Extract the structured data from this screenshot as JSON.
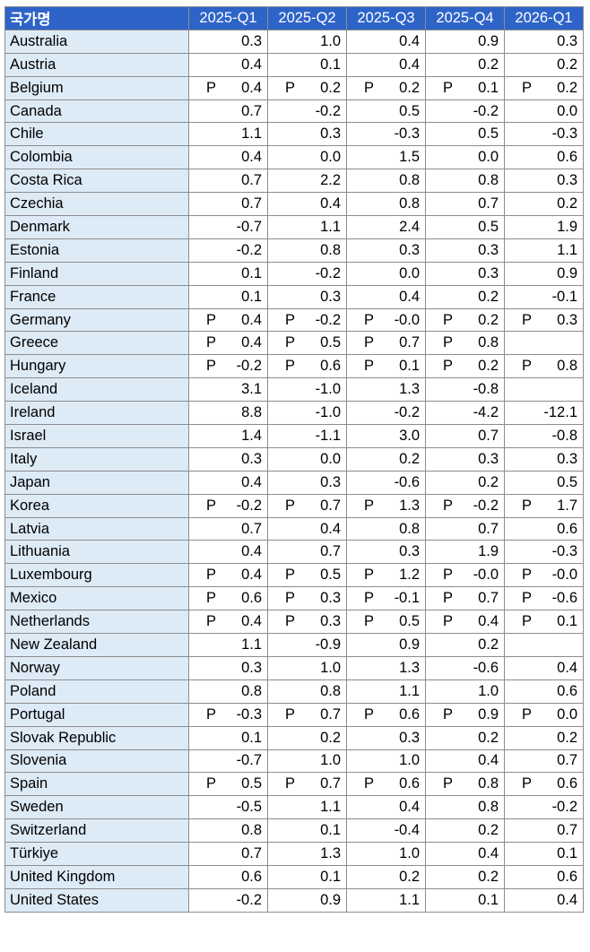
{
  "header": {
    "name_col": "국가명",
    "quarters": [
      "2025-Q1",
      "2025-Q2",
      "2025-Q3",
      "2025-Q4",
      "2026-Q1"
    ]
  },
  "rows": [
    {
      "country": "Australia",
      "cells": [
        {
          "f": "",
          "v": "0.3"
        },
        {
          "f": "",
          "v": "1.0"
        },
        {
          "f": "",
          "v": "0.4"
        },
        {
          "f": "",
          "v": "0.9"
        },
        {
          "f": "",
          "v": "0.3"
        }
      ]
    },
    {
      "country": "Austria",
      "cells": [
        {
          "f": "",
          "v": "0.4"
        },
        {
          "f": "",
          "v": "0.1"
        },
        {
          "f": "",
          "v": "0.4"
        },
        {
          "f": "",
          "v": "0.2"
        },
        {
          "f": "",
          "v": "0.2"
        }
      ]
    },
    {
      "country": "Belgium",
      "cells": [
        {
          "f": "P",
          "v": "0.4"
        },
        {
          "f": "P",
          "v": "0.2"
        },
        {
          "f": "P",
          "v": "0.2"
        },
        {
          "f": "P",
          "v": "0.1"
        },
        {
          "f": "P",
          "v": "0.2"
        }
      ]
    },
    {
      "country": "Canada",
      "cells": [
        {
          "f": "",
          "v": "0.7"
        },
        {
          "f": "",
          "v": "-0.2"
        },
        {
          "f": "",
          "v": "0.5"
        },
        {
          "f": "",
          "v": "-0.2"
        },
        {
          "f": "",
          "v": "0.0"
        }
      ]
    },
    {
      "country": "Chile",
      "cells": [
        {
          "f": "",
          "v": "1.1"
        },
        {
          "f": "",
          "v": "0.3"
        },
        {
          "f": "",
          "v": "-0.3"
        },
        {
          "f": "",
          "v": "0.5"
        },
        {
          "f": "",
          "v": "-0.3"
        }
      ]
    },
    {
      "country": "Colombia",
      "cells": [
        {
          "f": "",
          "v": "0.4"
        },
        {
          "f": "",
          "v": "0.0"
        },
        {
          "f": "",
          "v": "1.5"
        },
        {
          "f": "",
          "v": "0.0"
        },
        {
          "f": "",
          "v": "0.6"
        }
      ]
    },
    {
      "country": "Costa Rica",
      "cells": [
        {
          "f": "",
          "v": "0.7"
        },
        {
          "f": "",
          "v": "2.2"
        },
        {
          "f": "",
          "v": "0.8"
        },
        {
          "f": "",
          "v": "0.8"
        },
        {
          "f": "",
          "v": "0.3"
        }
      ]
    },
    {
      "country": "Czechia",
      "cells": [
        {
          "f": "",
          "v": "0.7"
        },
        {
          "f": "",
          "v": "0.4"
        },
        {
          "f": "",
          "v": "0.8"
        },
        {
          "f": "",
          "v": "0.7"
        },
        {
          "f": "",
          "v": "0.2"
        }
      ]
    },
    {
      "country": "Denmark",
      "cells": [
        {
          "f": "",
          "v": "-0.7"
        },
        {
          "f": "",
          "v": "1.1"
        },
        {
          "f": "",
          "v": "2.4"
        },
        {
          "f": "",
          "v": "0.5"
        },
        {
          "f": "",
          "v": "1.9"
        }
      ]
    },
    {
      "country": "Estonia",
      "cells": [
        {
          "f": "",
          "v": "-0.2"
        },
        {
          "f": "",
          "v": "0.8"
        },
        {
          "f": "",
          "v": "0.3"
        },
        {
          "f": "",
          "v": "0.3"
        },
        {
          "f": "",
          "v": "1.1"
        }
      ]
    },
    {
      "country": "Finland",
      "cells": [
        {
          "f": "",
          "v": "0.1"
        },
        {
          "f": "",
          "v": "-0.2"
        },
        {
          "f": "",
          "v": "0.0"
        },
        {
          "f": "",
          "v": "0.3"
        },
        {
          "f": "",
          "v": "0.9"
        }
      ]
    },
    {
      "country": "France",
      "cells": [
        {
          "f": "",
          "v": "0.1"
        },
        {
          "f": "",
          "v": "0.3"
        },
        {
          "f": "",
          "v": "0.4"
        },
        {
          "f": "",
          "v": "0.2"
        },
        {
          "f": "",
          "v": "-0.1"
        }
      ]
    },
    {
      "country": "Germany",
      "cells": [
        {
          "f": "P",
          "v": "0.4"
        },
        {
          "f": "P",
          "v": "-0.2"
        },
        {
          "f": "P",
          "v": "-0.0"
        },
        {
          "f": "P",
          "v": "0.2"
        },
        {
          "f": "P",
          "v": "0.3"
        }
      ]
    },
    {
      "country": "Greece",
      "cells": [
        {
          "f": "P",
          "v": "0.4"
        },
        {
          "f": "P",
          "v": "0.5"
        },
        {
          "f": "P",
          "v": "0.7"
        },
        {
          "f": "P",
          "v": "0.8"
        },
        {
          "f": "",
          "v": ""
        }
      ]
    },
    {
      "country": "Hungary",
      "cells": [
        {
          "f": "P",
          "v": "-0.2"
        },
        {
          "f": "P",
          "v": "0.6"
        },
        {
          "f": "P",
          "v": "0.1"
        },
        {
          "f": "P",
          "v": "0.2"
        },
        {
          "f": "P",
          "v": "0.8"
        }
      ]
    },
    {
      "country": "Iceland",
      "cells": [
        {
          "f": "",
          "v": "3.1"
        },
        {
          "f": "",
          "v": "-1.0"
        },
        {
          "f": "",
          "v": "1.3"
        },
        {
          "f": "",
          "v": "-0.8"
        },
        {
          "f": "",
          "v": ""
        }
      ]
    },
    {
      "country": "Ireland",
      "cells": [
        {
          "f": "",
          "v": "8.8"
        },
        {
          "f": "",
          "v": "-1.0"
        },
        {
          "f": "",
          "v": "-0.2"
        },
        {
          "f": "",
          "v": "-4.2"
        },
        {
          "f": "",
          "v": "-12.1"
        }
      ]
    },
    {
      "country": "Israel",
      "cells": [
        {
          "f": "",
          "v": "1.4"
        },
        {
          "f": "",
          "v": "-1.1"
        },
        {
          "f": "",
          "v": "3.0"
        },
        {
          "f": "",
          "v": "0.7"
        },
        {
          "f": "",
          "v": "-0.8"
        }
      ]
    },
    {
      "country": "Italy",
      "cells": [
        {
          "f": "",
          "v": "0.3"
        },
        {
          "f": "",
          "v": "0.0"
        },
        {
          "f": "",
          "v": "0.2"
        },
        {
          "f": "",
          "v": "0.3"
        },
        {
          "f": "",
          "v": "0.3"
        }
      ]
    },
    {
      "country": "Japan",
      "cells": [
        {
          "f": "",
          "v": "0.4"
        },
        {
          "f": "",
          "v": "0.3"
        },
        {
          "f": "",
          "v": "-0.6"
        },
        {
          "f": "",
          "v": "0.2"
        },
        {
          "f": "",
          "v": "0.5"
        }
      ]
    },
    {
      "country": "Korea",
      "cells": [
        {
          "f": "P",
          "v": "-0.2"
        },
        {
          "f": "P",
          "v": "0.7"
        },
        {
          "f": "P",
          "v": "1.3"
        },
        {
          "f": "P",
          "v": "-0.2"
        },
        {
          "f": "P",
          "v": "1.7"
        }
      ]
    },
    {
      "country": "Latvia",
      "cells": [
        {
          "f": "",
          "v": "0.7"
        },
        {
          "f": "",
          "v": "0.4"
        },
        {
          "f": "",
          "v": "0.8"
        },
        {
          "f": "",
          "v": "0.7"
        },
        {
          "f": "",
          "v": "0.6"
        }
      ]
    },
    {
      "country": "Lithuania",
      "cells": [
        {
          "f": "",
          "v": "0.4"
        },
        {
          "f": "",
          "v": "0.7"
        },
        {
          "f": "",
          "v": "0.3"
        },
        {
          "f": "",
          "v": "1.9"
        },
        {
          "f": "",
          "v": "-0.3"
        }
      ]
    },
    {
      "country": "Luxembourg",
      "cells": [
        {
          "f": "P",
          "v": "0.4"
        },
        {
          "f": "P",
          "v": "0.5"
        },
        {
          "f": "P",
          "v": "1.2"
        },
        {
          "f": "P",
          "v": "-0.0"
        },
        {
          "f": "P",
          "v": "-0.0"
        }
      ]
    },
    {
      "country": "Mexico",
      "cells": [
        {
          "f": "P",
          "v": "0.6"
        },
        {
          "f": "P",
          "v": "0.3"
        },
        {
          "f": "P",
          "v": "-0.1"
        },
        {
          "f": "P",
          "v": "0.7"
        },
        {
          "f": "P",
          "v": "-0.6"
        }
      ]
    },
    {
      "country": "Netherlands",
      "cells": [
        {
          "f": "P",
          "v": "0.4"
        },
        {
          "f": "P",
          "v": "0.3"
        },
        {
          "f": "P",
          "v": "0.5"
        },
        {
          "f": "P",
          "v": "0.4"
        },
        {
          "f": "P",
          "v": "0.1"
        }
      ]
    },
    {
      "country": "New Zealand",
      "cells": [
        {
          "f": "",
          "v": "1.1"
        },
        {
          "f": "",
          "v": "-0.9"
        },
        {
          "f": "",
          "v": "0.9"
        },
        {
          "f": "",
          "v": "0.2"
        },
        {
          "f": "",
          "v": ""
        }
      ]
    },
    {
      "country": "Norway",
      "cells": [
        {
          "f": "",
          "v": "0.3"
        },
        {
          "f": "",
          "v": "1.0"
        },
        {
          "f": "",
          "v": "1.3"
        },
        {
          "f": "",
          "v": "-0.6"
        },
        {
          "f": "",
          "v": "0.4"
        }
      ]
    },
    {
      "country": "Poland",
      "cells": [
        {
          "f": "",
          "v": "0.8"
        },
        {
          "f": "",
          "v": "0.8"
        },
        {
          "f": "",
          "v": "1.1"
        },
        {
          "f": "",
          "v": "1.0"
        },
        {
          "f": "",
          "v": "0.6"
        }
      ]
    },
    {
      "country": "Portugal",
      "cells": [
        {
          "f": "P",
          "v": "-0.3"
        },
        {
          "f": "P",
          "v": "0.7"
        },
        {
          "f": "P",
          "v": "0.6"
        },
        {
          "f": "P",
          "v": "0.9"
        },
        {
          "f": "P",
          "v": "0.0"
        }
      ]
    },
    {
      "country": "Slovak Republic",
      "cells": [
        {
          "f": "",
          "v": "0.1"
        },
        {
          "f": "",
          "v": "0.2"
        },
        {
          "f": "",
          "v": "0.3"
        },
        {
          "f": "",
          "v": "0.2"
        },
        {
          "f": "",
          "v": "0.2"
        }
      ]
    },
    {
      "country": "Slovenia",
      "cells": [
        {
          "f": "",
          "v": "-0.7"
        },
        {
          "f": "",
          "v": "1.0"
        },
        {
          "f": "",
          "v": "1.0"
        },
        {
          "f": "",
          "v": "0.4"
        },
        {
          "f": "",
          "v": "0.7"
        }
      ]
    },
    {
      "country": "Spain",
      "cells": [
        {
          "f": "P",
          "v": "0.5"
        },
        {
          "f": "P",
          "v": "0.7"
        },
        {
          "f": "P",
          "v": "0.6"
        },
        {
          "f": "P",
          "v": "0.8"
        },
        {
          "f": "P",
          "v": "0.6"
        }
      ]
    },
    {
      "country": "Sweden",
      "cells": [
        {
          "f": "",
          "v": "-0.5"
        },
        {
          "f": "",
          "v": "1.1"
        },
        {
          "f": "",
          "v": "0.4"
        },
        {
          "f": "",
          "v": "0.8"
        },
        {
          "f": "",
          "v": "-0.2"
        }
      ]
    },
    {
      "country": "Switzerland",
      "cells": [
        {
          "f": "",
          "v": "0.8"
        },
        {
          "f": "",
          "v": "0.1"
        },
        {
          "f": "",
          "v": "-0.4"
        },
        {
          "f": "",
          "v": "0.2"
        },
        {
          "f": "",
          "v": "0.7"
        }
      ]
    },
    {
      "country": "Türkiye",
      "cells": [
        {
          "f": "",
          "v": "0.7"
        },
        {
          "f": "",
          "v": "1.3"
        },
        {
          "f": "",
          "v": "1.0"
        },
        {
          "f": "",
          "v": "0.4"
        },
        {
          "f": "",
          "v": "0.1"
        }
      ]
    },
    {
      "country": "United Kingdom",
      "cells": [
        {
          "f": "",
          "v": "0.6"
        },
        {
          "f": "",
          "v": "0.1"
        },
        {
          "f": "",
          "v": "0.2"
        },
        {
          "f": "",
          "v": "0.2"
        },
        {
          "f": "",
          "v": "0.6"
        }
      ]
    },
    {
      "country": "United States",
      "cells": [
        {
          "f": "",
          "v": "-0.2"
        },
        {
          "f": "",
          "v": "0.9"
        },
        {
          "f": "",
          "v": "1.1"
        },
        {
          "f": "",
          "v": "0.1"
        },
        {
          "f": "",
          "v": "0.4"
        }
      ]
    }
  ]
}
